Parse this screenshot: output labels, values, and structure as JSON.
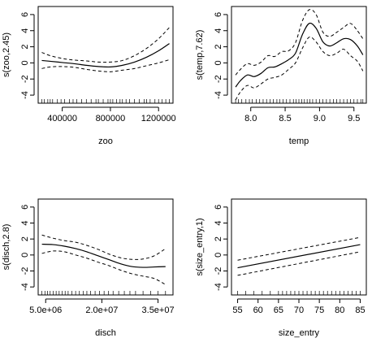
{
  "chart_data": [
    {
      "type": "line",
      "xlabel": "zoo",
      "ylabel": "s(zoo,2.45)",
      "xlim": [
        200000,
        1320000
      ],
      "ylim": [
        -5,
        7
      ],
      "xticks": [
        400000,
        800000,
        1200000
      ],
      "xtick_labels": [
        "400000",
        "800000",
        "1200000"
      ],
      "yticks": [
        -4,
        -2,
        0,
        2,
        4,
        6
      ],
      "ytick_labels": [
        "-4",
        "-2",
        "0",
        "2",
        "4",
        "6"
      ],
      "x": [
        230000,
        300000,
        400000,
        500000,
        600000,
        700000,
        800000,
        900000,
        1000000,
        1100000,
        1200000,
        1290000
      ],
      "fit": [
        0.3,
        0.2,
        0.05,
        -0.1,
        -0.3,
        -0.45,
        -0.5,
        -0.3,
        0.1,
        0.7,
        1.5,
        2.4
      ],
      "upper": [
        1.3,
        0.9,
        0.55,
        0.35,
        0.25,
        0.1,
        0.1,
        0.3,
        0.9,
        1.8,
        3.0,
        4.4
      ],
      "lower": [
        -0.7,
        -0.5,
        -0.45,
        -0.55,
        -0.8,
        -1.0,
        -1.1,
        -0.9,
        -0.7,
        -0.35,
        0.0,
        0.4
      ],
      "rug": [
        230000,
        250000,
        280000,
        300000,
        320000,
        360000,
        390000,
        420000,
        460000,
        490000,
        520000,
        560000,
        600000,
        640000,
        680000,
        700000,
        740000,
        780000,
        800000,
        820000,
        850000,
        880000,
        900000,
        930000,
        960000,
        1000000,
        1040000,
        1080000,
        1100000,
        1130000,
        1170000,
        1200000,
        1230000,
        1260000,
        1290000
      ]
    },
    {
      "type": "line",
      "xlabel": "temp",
      "ylabel": "s(temp,7.62)",
      "xlim": [
        7.72,
        9.68
      ],
      "ylim": [
        -5,
        7
      ],
      "xticks": [
        8.0,
        8.5,
        9.0,
        9.5
      ],
      "xtick_labels": [
        "8.0",
        "8.5",
        "9.0",
        "9.5"
      ],
      "yticks": [
        -4,
        -2,
        0,
        2,
        4,
        6
      ],
      "ytick_labels": [
        "-4",
        "-2",
        "0",
        "2",
        "4",
        "6"
      ],
      "x": [
        7.78,
        7.85,
        7.95,
        8.05,
        8.15,
        8.25,
        8.35,
        8.45,
        8.55,
        8.65,
        8.75,
        8.85,
        8.95,
        9.05,
        9.15,
        9.25,
        9.35,
        9.45,
        9.55,
        9.63
      ],
      "fit": [
        -3.0,
        -2.2,
        -1.5,
        -1.7,
        -1.3,
        -0.6,
        -0.5,
        -0.1,
        0.4,
        1.2,
        3.5,
        4.9,
        4.3,
        2.6,
        2.1,
        2.5,
        3.0,
        2.9,
        2.1,
        1.0
      ],
      "upper": [
        -1.5,
        -0.8,
        -0.1,
        -0.3,
        0.1,
        0.9,
        0.8,
        1.4,
        1.5,
        2.5,
        5.2,
        6.6,
        6.0,
        3.8,
        3.3,
        3.8,
        4.4,
        4.9,
        4.0,
        3.0
      ],
      "lower": [
        -4.6,
        -3.6,
        -2.8,
        -3.1,
        -2.6,
        -2.0,
        -1.8,
        -1.5,
        -0.8,
        0.0,
        1.8,
        3.2,
        2.6,
        1.4,
        0.9,
        1.2,
        1.7,
        0.9,
        0.2,
        -1.0
      ],
      "rug": [
        7.78,
        7.82,
        7.87,
        7.93,
        7.98,
        8.02,
        8.08,
        8.13,
        8.18,
        8.23,
        8.28,
        8.33,
        8.38,
        8.42,
        8.47,
        8.52,
        8.57,
        8.62,
        8.66,
        8.7,
        8.74,
        8.78,
        8.82,
        8.86,
        8.9,
        8.95,
        9.0,
        9.05,
        9.1,
        9.15,
        9.2,
        9.25,
        9.3,
        9.35,
        9.4,
        9.45,
        9.5,
        9.55,
        9.6,
        9.63
      ]
    },
    {
      "type": "line",
      "xlabel": "disch",
      "ylabel": "s(disch,2.8)",
      "xlim": [
        3000000,
        39000000
      ],
      "ylim": [
        -5,
        7
      ],
      "xticks": [
        5000000,
        20000000,
        35000000
      ],
      "xtick_labels": [
        "5.0e+06",
        "2.0e+07",
        "3.5e+07"
      ],
      "yticks": [
        -4,
        -2,
        0,
        2,
        4,
        6
      ],
      "ytick_labels": [
        "-4",
        "-2",
        "0",
        "2",
        "4",
        "6"
      ],
      "x": [
        4000000,
        7000000,
        10000000,
        13000000,
        16000000,
        19000000,
        22000000,
        25000000,
        28000000,
        31000000,
        34000000,
        37000000
      ],
      "fit": [
        1.35,
        1.3,
        1.1,
        0.8,
        0.4,
        -0.1,
        -0.6,
        -1.1,
        -1.45,
        -1.55,
        -1.5,
        -1.45
      ],
      "upper": [
        2.5,
        2.1,
        1.8,
        1.6,
        1.2,
        0.7,
        0.1,
        -0.35,
        -0.55,
        -0.5,
        -0.1,
        0.8
      ],
      "lower": [
        0.2,
        0.5,
        0.4,
        0.0,
        -0.4,
        -0.9,
        -1.35,
        -1.9,
        -2.35,
        -2.65,
        -2.95,
        -3.7
      ],
      "rug": [
        4000000,
        4800000,
        5500000,
        6200000,
        7000000,
        7800000,
        8600000,
        9400000,
        10200000,
        11000000,
        12000000,
        13000000,
        14000000,
        15000000,
        16000000,
        17000000,
        18200000,
        19400000,
        20600000,
        21800000,
        23000000,
        24500000,
        26000000,
        27500000,
        29000000,
        31000000,
        33000000,
        35000000,
        37000000
      ]
    },
    {
      "type": "line",
      "xlabel": "size_entry",
      "ylabel": "s(size_entry,1)",
      "xlim": [
        53.5,
        86.5
      ],
      "ylim": [
        -5,
        7
      ],
      "xticks": [
        55,
        60,
        65,
        70,
        75,
        80,
        85
      ],
      "xtick_labels": [
        "55",
        "60",
        "65",
        "70",
        "75",
        "80",
        "85"
      ],
      "yticks": [
        -4,
        -2,
        0,
        2,
        4,
        6
      ],
      "ytick_labels": [
        "-4",
        "-2",
        "0",
        "2",
        "4",
        "6"
      ],
      "x": [
        55,
        85
      ],
      "fit": [
        -1.6,
        1.3
      ],
      "upper": [
        -0.65,
        2.2
      ],
      "lower": [
        -2.55,
        0.4
      ],
      "pivot_x": 71.5,
      "rug": [
        55,
        57,
        59,
        61,
        63,
        65,
        66,
        67,
        68,
        69,
        70,
        71,
        72,
        73,
        74,
        75,
        76,
        77,
        78,
        79,
        80,
        81,
        82,
        83,
        84,
        85
      ]
    }
  ]
}
